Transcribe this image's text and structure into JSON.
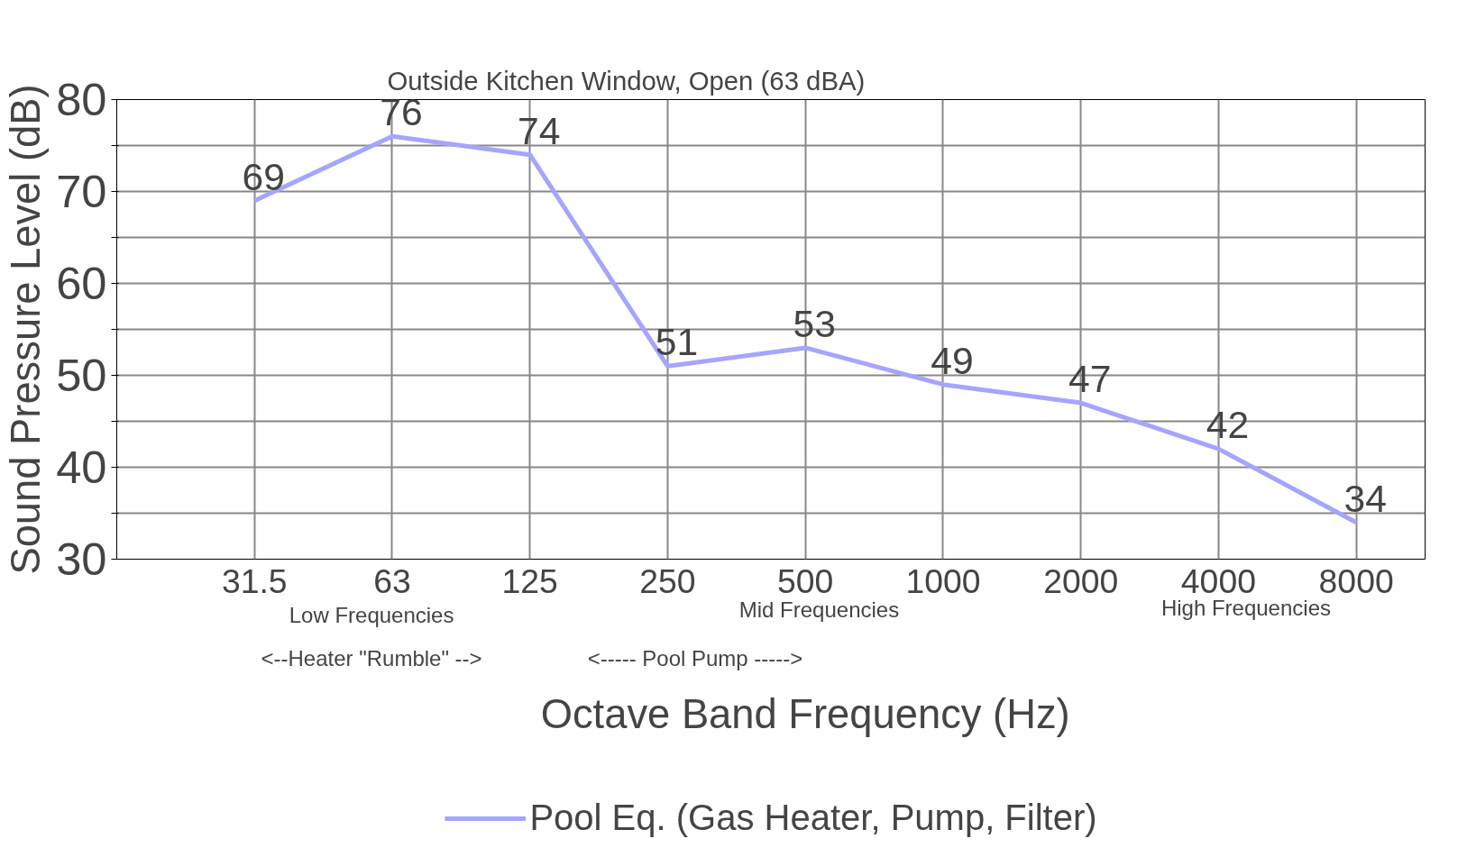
{
  "chart_data": {
    "type": "line",
    "title": "Outside Kitchen Window, Open (63 dBA)",
    "xlabel": "Octave Band Frequency (Hz)",
    "ylabel": "Sound Pressure Level (dB)",
    "categories": [
      "31.5",
      "63",
      "125",
      "250",
      "500",
      "1000",
      "2000",
      "4000",
      "8000"
    ],
    "series": [
      {
        "name": "Pool Eq. (Gas Heater, Pump, Filter)",
        "color": "#a5a5ff",
        "values": [
          69,
          76,
          74,
          51,
          53,
          49,
          47,
          42,
          34
        ]
      }
    ],
    "ylim": [
      30,
      80
    ],
    "yticks": [
      30,
      {
        "value": 35,
        "label": null
      },
      40,
      {
        "value": 45,
        "label": null
      },
      50,
      {
        "value": 55,
        "label": null
      },
      60,
      {
        "value": 65,
        "label": null
      },
      70,
      {
        "value": 75,
        "label": null
      },
      80
    ],
    "annotations": [
      "Low Frequencies",
      "<--Heater \"Rumble\" -->",
      "Mid Frequencies",
      "<----- Pool Pump ----->",
      "High Frequencies"
    ],
    "data_labels": true,
    "grid": true,
    "legend": "bottom",
    "marker": "none",
    "line_style": "solid"
  }
}
